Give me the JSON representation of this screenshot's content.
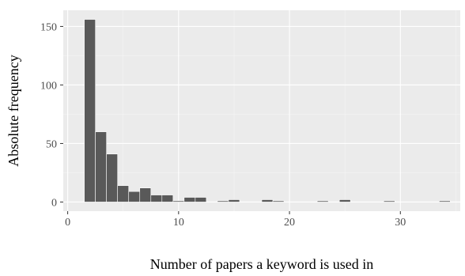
{
  "colors": {
    "panel_background": "#ebebeb",
    "grid_major": "#ffffff",
    "grid_minor": "#f5f5f5",
    "bar_fill": "#595959",
    "tick_text": "#4d4d4d",
    "tick_mark": "#333333"
  },
  "chart_data": {
    "type": "bar",
    "xlabel": "Number of papers a keyword is used in",
    "ylabel": "Absolute frequency",
    "xlim": [
      -0.4,
      35.4
    ],
    "ylim": [
      -7.8,
      163.8
    ],
    "x_ticks": [
      0,
      10,
      20,
      30
    ],
    "x_tick_labels": [
      "0",
      "10",
      "20",
      "30"
    ],
    "y_ticks": [
      0,
      50,
      100,
      150
    ],
    "y_tick_labels": [
      "0",
      "50",
      "100",
      "150"
    ],
    "grid": true,
    "x": [
      2,
      3,
      4,
      5,
      6,
      7,
      8,
      9,
      10,
      11,
      12,
      14,
      15,
      18,
      19,
      23,
      25,
      29,
      34
    ],
    "values": [
      156,
      60,
      41,
      14,
      9,
      12,
      6,
      6,
      1,
      4,
      4,
      1,
      2,
      2,
      1,
      1,
      2,
      1,
      1
    ]
  }
}
